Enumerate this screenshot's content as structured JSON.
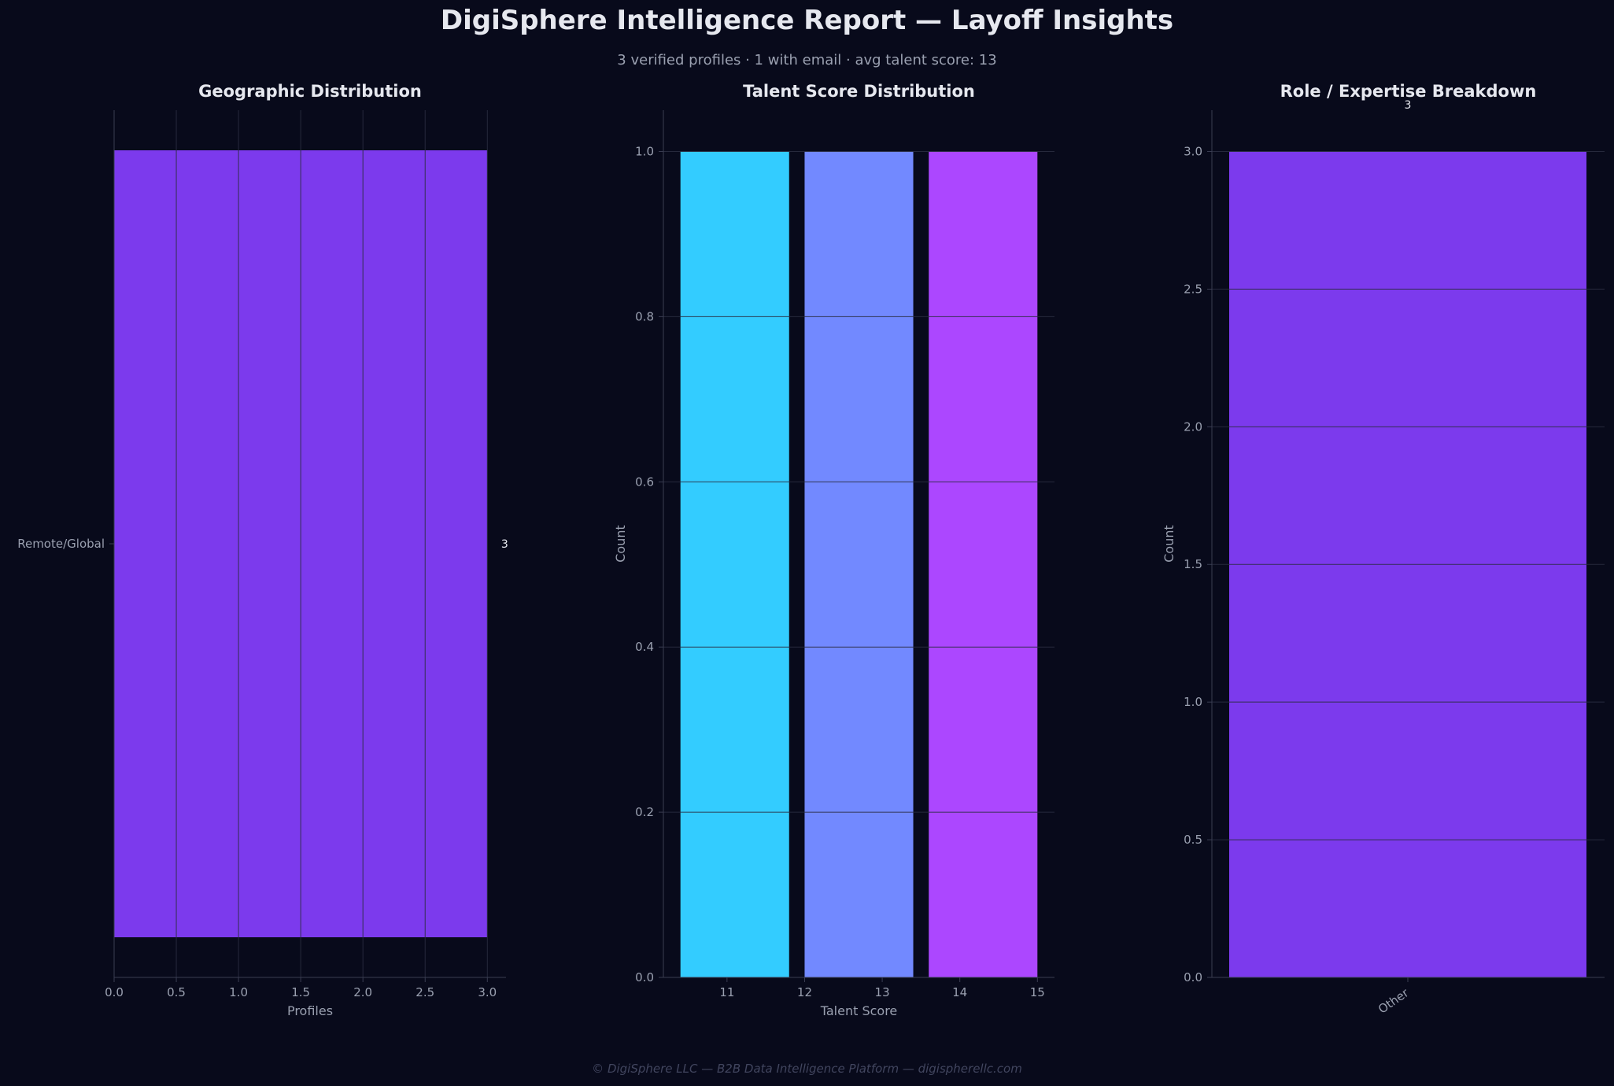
{
  "header": {
    "title": "DigiSphere Intelligence Report — Layoff Insights",
    "subtitle": "3 verified profiles  ·  1 with email  ·  avg talent score: 13"
  },
  "footer": {
    "text": "© DigiSphere LLC — B2B Data Intelligence Platform — digispherellc.com"
  },
  "colors": {
    "background": "#080a1b",
    "purple": "#7c3aed",
    "cyan": "#33ccff",
    "blue": "#7289ff",
    "violet": "#ac47ff",
    "grid": "#2a2d40",
    "axis": "#3a3d52"
  },
  "chart_data": [
    {
      "type": "bar",
      "orientation": "horizontal",
      "title": "Geographic Distribution",
      "xlabel": "Profiles",
      "ylabel": "",
      "categories": [
        "Remote/Global"
      ],
      "values": [
        3
      ],
      "data_labels": [
        "3"
      ],
      "xlim": [
        0,
        3.15
      ],
      "xticks": [
        0.0,
        0.5,
        1.0,
        1.5,
        2.0,
        2.5,
        3.0
      ],
      "xtick_labels": [
        "0.0",
        "0.5",
        "1.0",
        "1.5",
        "2.0",
        "2.5",
        "3.0"
      ],
      "grid": "vertical",
      "color": "#7c3aed"
    },
    {
      "type": "bar",
      "title": "Talent Score Distribution",
      "xlabel": "Talent Score",
      "ylabel": "Count",
      "bins": [
        {
          "x0": 10.4,
          "x1": 11.8,
          "count": 1,
          "color": "#33ccff"
        },
        {
          "x0": 12.0,
          "x1": 13.4,
          "count": 1,
          "color": "#7289ff"
        },
        {
          "x0": 13.6,
          "x1": 15.0,
          "count": 1,
          "color": "#ac47ff"
        }
      ],
      "xlim": [
        10.18,
        15.22
      ],
      "ylim": [
        0,
        1.05
      ],
      "xticks": [
        11,
        12,
        13,
        14,
        15
      ],
      "xtick_labels": [
        "11",
        "12",
        "13",
        "14",
        "15"
      ],
      "yticks": [
        0.0,
        0.2,
        0.4,
        0.6,
        0.8,
        1.0
      ],
      "ytick_labels": [
        "0.0",
        "0.2",
        "0.4",
        "0.6",
        "0.8",
        "1.0"
      ],
      "grid": "horizontal"
    },
    {
      "type": "bar",
      "title": "Role / Expertise Breakdown",
      "xlabel": "",
      "ylabel": "Count",
      "categories": [
        "Other"
      ],
      "values": [
        3
      ],
      "data_labels": [
        "3"
      ],
      "ylim": [
        0,
        3.15
      ],
      "yticks": [
        0.0,
        0.5,
        1.0,
        1.5,
        2.0,
        2.5,
        3.0
      ],
      "ytick_labels": [
        "0.0",
        "0.5",
        "1.0",
        "1.5",
        "2.0",
        "2.5",
        "3.0"
      ],
      "grid": "horizontal",
      "color": "#7c3aed"
    }
  ]
}
